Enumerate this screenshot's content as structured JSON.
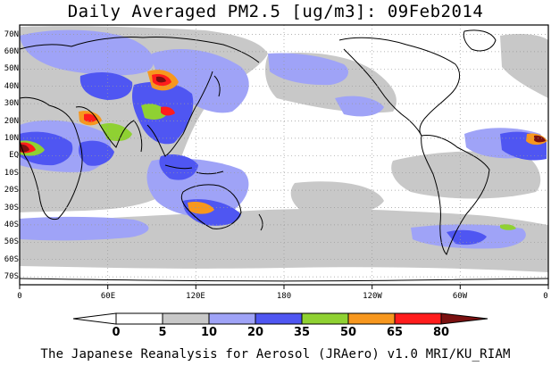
{
  "title": "Daily Averaged PM2.5 [ug/m3]: 09Feb2014",
  "footer": "The Japanese Reanalysis for Aerosol (JRAero) v1.0 MRI/KU_RIAM",
  "lat_labels": [
    "70N",
    "60N",
    "50N",
    "40N",
    "30N",
    "20N",
    "10N",
    "EQ",
    "10S",
    "20S",
    "30S",
    "40S",
    "50S",
    "60S",
    "70S"
  ],
  "lon_labels": [
    "0",
    "60E",
    "120E",
    "180",
    "120W",
    "60W",
    "0"
  ],
  "colorbar": {
    "labels": [
      "0",
      "5",
      "10",
      "20",
      "35",
      "50",
      "65",
      "80"
    ],
    "colors": [
      "#ffffff",
      "#ffffff",
      "#c8c8c8",
      "#9fa3f7",
      "#4f56f2",
      "#8fd132",
      "#f7971e",
      "#ff1c1c",
      "#7a1010"
    ]
  },
  "map": {
    "lon_range": [
      0,
      360
    ],
    "lat_range": [
      -75,
      75
    ],
    "grid": "dotted",
    "projection": "cylindrical equidistant"
  }
}
